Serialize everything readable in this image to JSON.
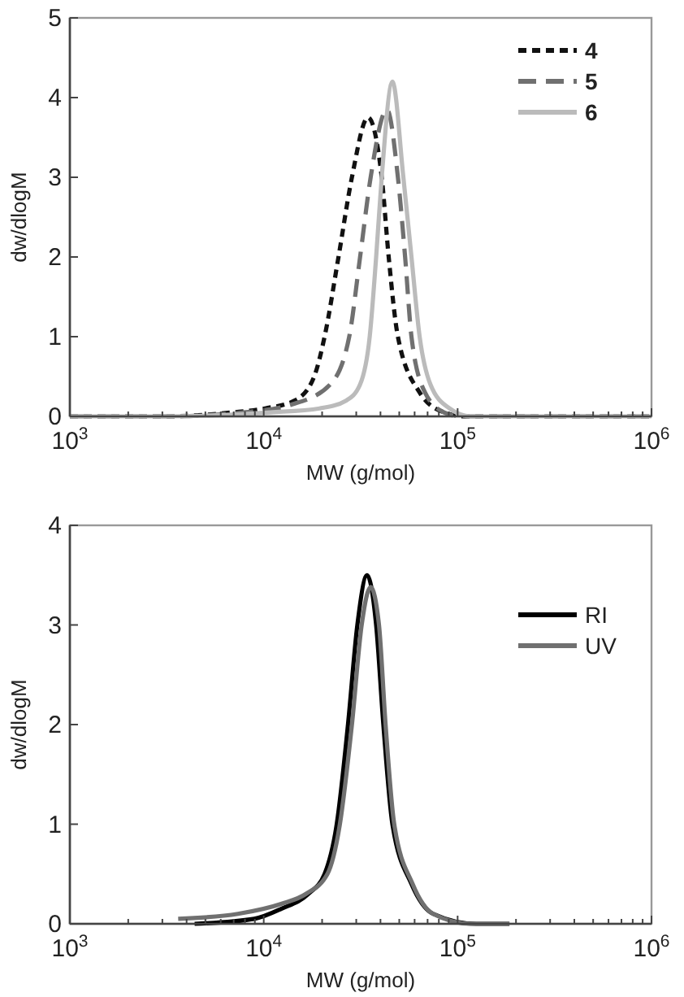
{
  "chart_data": [
    {
      "type": "line",
      "xlabel": "MW (g/mol)",
      "ylabel": "dw/dlogM",
      "log": "x",
      "legend": "top right",
      "grid": false,
      "xlim": [
        1000,
        1000000
      ],
      "ylim": [
        0,
        5
      ],
      "xticks": [
        {
          "value": 1000,
          "label": "10$^{3}$"
        },
        {
          "value": 2000,
          "label": null
        },
        {
          "value": 3000,
          "label": null
        },
        {
          "value": 4000,
          "label": null
        },
        {
          "value": 5000,
          "label": null
        },
        {
          "value": 6000,
          "label": null
        },
        {
          "value": 7000,
          "label": null
        },
        {
          "value": 8000,
          "label": null
        },
        {
          "value": 9000,
          "label": null
        },
        {
          "value": 10000,
          "label": "10$^{4}$"
        },
        {
          "value": 20000,
          "label": null
        },
        {
          "value": 30000,
          "label": null
        },
        {
          "value": 40000,
          "label": null
        },
        {
          "value": 50000,
          "label": null
        },
        {
          "value": 60000,
          "label": null
        },
        {
          "value": 70000,
          "label": null
        },
        {
          "value": 80000,
          "label": null
        },
        {
          "value": 90000,
          "label": null
        },
        {
          "value": 100000,
          "label": "10$^{5}$"
        },
        {
          "value": 200000,
          "label": null
        },
        {
          "value": 300000,
          "label": null
        },
        {
          "value": 400000,
          "label": null
        },
        {
          "value": 500000,
          "label": null
        },
        {
          "value": 600000,
          "label": null
        },
        {
          "value": 700000,
          "label": null
        },
        {
          "value": 800000,
          "label": null
        },
        {
          "value": 900000,
          "label": null
        },
        {
          "value": 1000000,
          "label": "10$^{6}$"
        }
      ],
      "yticks": [
        0,
        1,
        2,
        3,
        4,
        5
      ],
      "series": [
        {
          "name": "4",
          "color": "#111111",
          "line_style": "dotted",
          "x": [
            1000,
            2990,
            6900,
            10160,
            14500,
            18200,
            20600,
            24300,
            28500,
            34500,
            40600,
            44100,
            49200,
            63700,
            85100,
            110000,
            1000000
          ],
          "values": [
            0,
            0,
            0.05,
            0.1,
            0.2,
            0.5,
            1,
            2,
            3,
            3.75,
            3,
            2,
            1,
            0.3,
            0.05,
            0,
            0
          ]
        },
        {
          "name": "5",
          "color": "#707070",
          "line_style": "dashed",
          "x": [
            1000,
            2990,
            7850,
            14000,
            22000,
            27600,
            31400,
            35600,
            43200,
            49200,
            53600,
            57800,
            67900,
            85100,
            103000,
            1000000
          ],
          "values": [
            0,
            0,
            0.05,
            0.15,
            0.4,
            1,
            2,
            3,
            3.85,
            3,
            2,
            1,
            0.3,
            0.05,
            0,
            0
          ]
        },
        {
          "name": "6",
          "color": "#bbbbbb",
          "line_style": "solid",
          "x": [
            1000,
            2990,
            10800,
            19400,
            26700,
            31400,
            35200,
            38000,
            40600,
            46100,
            52500,
            57800,
            63700,
            72400,
            90800,
            117000,
            1000000
          ],
          "values": [
            0,
            0,
            0.05,
            0.1,
            0.2,
            0.4,
            1,
            2,
            3,
            4.2,
            3,
            2,
            1,
            0.4,
            0.1,
            0,
            0
          ]
        }
      ]
    },
    {
      "type": "line",
      "xlabel": "MW (g/mol)",
      "ylabel": "dw/dlogM",
      "log": "x",
      "legend": "top right",
      "grid": false,
      "xlim": [
        1000,
        1000000
      ],
      "ylim": [
        0,
        4
      ],
      "xticks": [
        {
          "value": 1000,
          "label": "10$^{3}$"
        },
        {
          "value": 2000,
          "label": null
        },
        {
          "value": 3000,
          "label": null
        },
        {
          "value": 4000,
          "label": null
        },
        {
          "value": 5000,
          "label": null
        },
        {
          "value": 6000,
          "label": null
        },
        {
          "value": 7000,
          "label": null
        },
        {
          "value": 8000,
          "label": null
        },
        {
          "value": 9000,
          "label": null
        },
        {
          "value": 10000,
          "label": "10$^{4}$"
        },
        {
          "value": 20000,
          "label": null
        },
        {
          "value": 30000,
          "label": null
        },
        {
          "value": 40000,
          "label": null
        },
        {
          "value": 50000,
          "label": null
        },
        {
          "value": 60000,
          "label": null
        },
        {
          "value": 70000,
          "label": null
        },
        {
          "value": 80000,
          "label": null
        },
        {
          "value": 90000,
          "label": null
        },
        {
          "value": 100000,
          "label": "10$^{5}$"
        },
        {
          "value": 200000,
          "label": null
        },
        {
          "value": 300000,
          "label": null
        },
        {
          "value": 400000,
          "label": null
        },
        {
          "value": 500000,
          "label": null
        },
        {
          "value": 600000,
          "label": null
        },
        {
          "value": 700000,
          "label": null
        },
        {
          "value": 800000,
          "label": null
        },
        {
          "value": 900000,
          "label": null
        },
        {
          "value": 1000000,
          "label": "10$^{6}$"
        }
      ],
      "yticks": [
        0,
        1,
        2,
        3,
        4
      ],
      "series": [
        {
          "name": "RI",
          "color": "#000000",
          "line_style": "solid",
          "x": [
            4400,
            8930,
            12300,
            17000,
            20600,
            23800,
            27200,
            30400,
            34100,
            38000,
            41400,
            46100,
            57800,
            74800,
            125000,
            185000
          ],
          "values": [
            0,
            0.05,
            0.15,
            0.3,
            0.5,
            1,
            2,
            3,
            3.5,
            3,
            2,
            1,
            0.4,
            0.1,
            0,
            0
          ]
        },
        {
          "name": "UV",
          "color": "#707070",
          "line_style": "solid",
          "x": [
            3620,
            7360,
            12300,
            16500,
            21300,
            24700,
            28500,
            32000,
            35600,
            39300,
            42500,
            47100,
            58600,
            74800,
            117000,
            185000
          ],
          "values": [
            0.05,
            0.1,
            0.2,
            0.3,
            0.5,
            1,
            2,
            3,
            3.38,
            3,
            2,
            1,
            0.4,
            0.1,
            0,
            0
          ]
        }
      ]
    }
  ]
}
